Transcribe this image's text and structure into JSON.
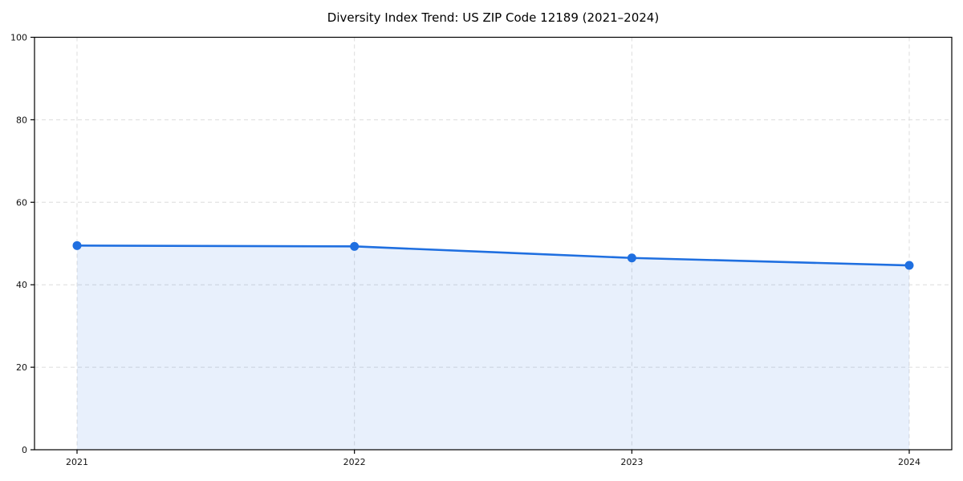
{
  "chart_data": {
    "type": "line",
    "title": "Diversity Index Trend: US ZIP Code 12189 (2021–2024)",
    "x": [
      "2021",
      "2022",
      "2023",
      "2024"
    ],
    "series": [
      {
        "name": "Diversity Index",
        "values": [
          49.5,
          49.3,
          46.5,
          44.7
        ]
      }
    ],
    "xlabel": "",
    "ylabel": "",
    "ylim": [
      0,
      100
    ],
    "yticks": [
      0,
      20,
      40,
      60,
      80,
      100
    ],
    "grid": "dashed both directions",
    "legend": "none",
    "area_fill_to_zero": true,
    "colors": {
      "line": "#1f6fe0",
      "marker": "#1f6fe0",
      "fill_rgba": "rgba(31,111,224,0.10)",
      "grid": "#dcdcdc",
      "spine": "#000000",
      "text": "#000000",
      "background": "#ffffff"
    }
  }
}
